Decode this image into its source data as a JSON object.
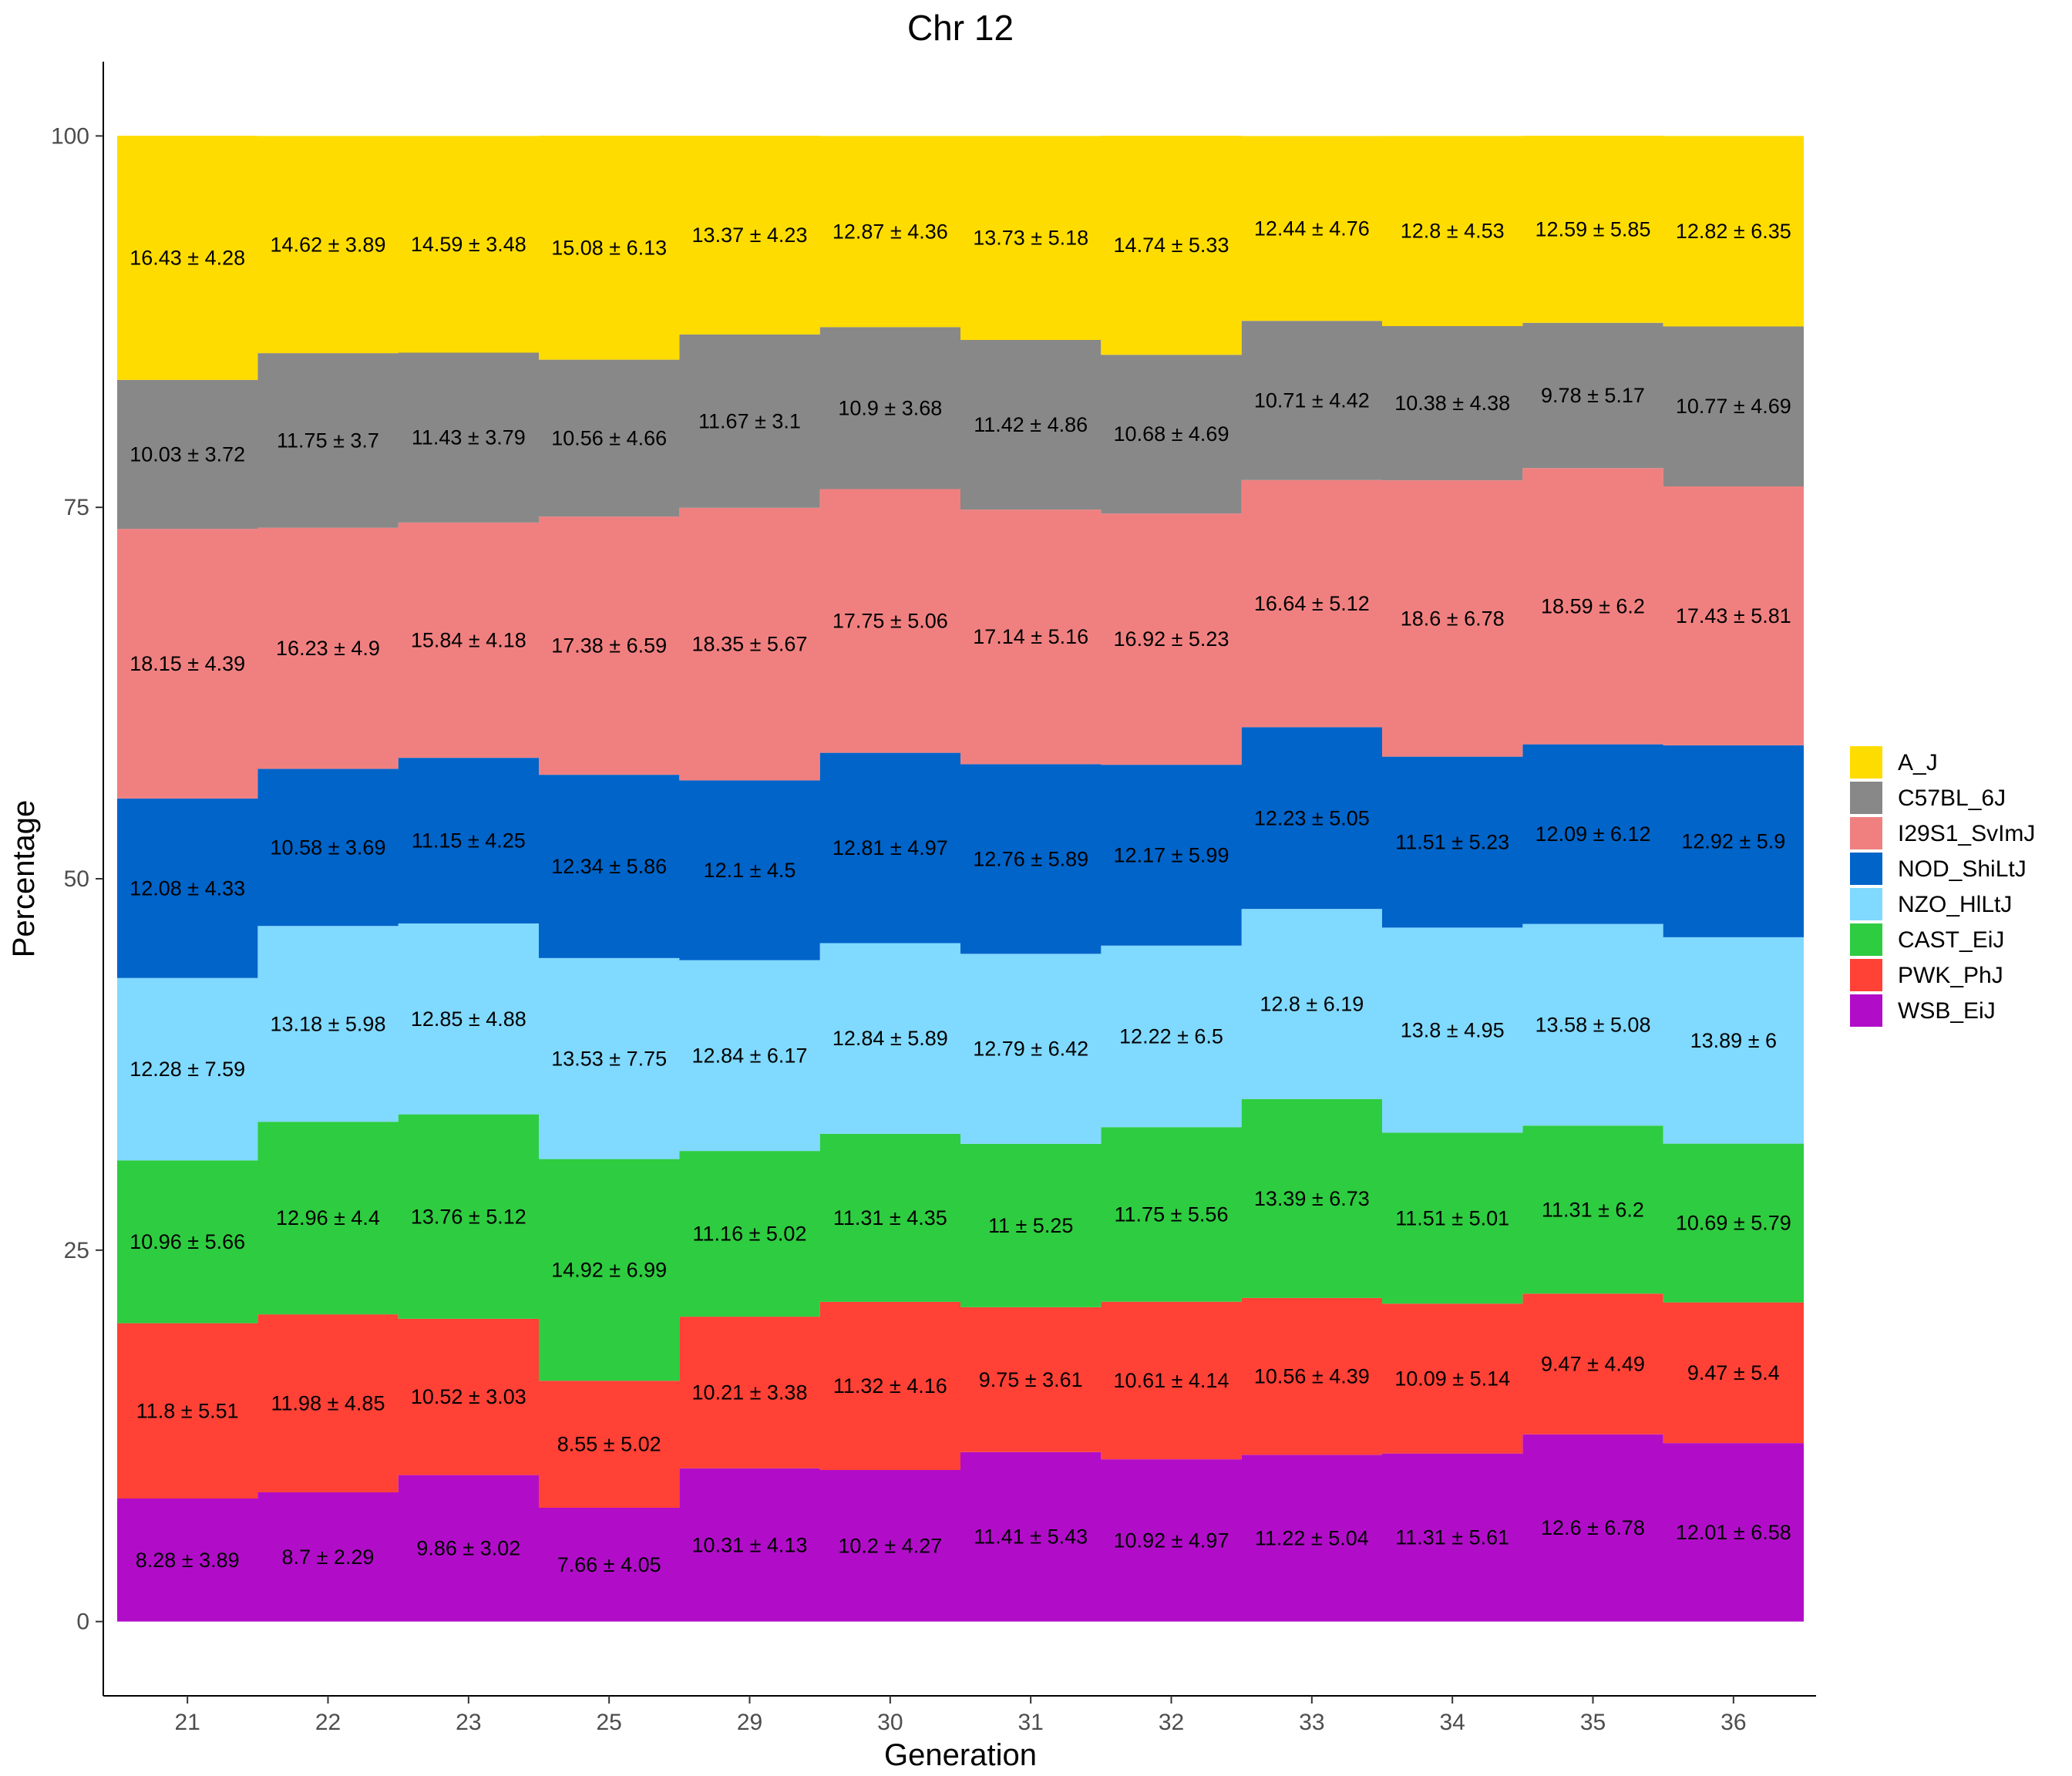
{
  "chart_data": {
    "type": "area",
    "stacked": true,
    "title": "Chr 12",
    "xlabel": "Generation",
    "ylabel": "Percentage",
    "ylim": [
      -5,
      105
    ],
    "yticks": [
      0,
      25,
      50,
      75,
      100
    ],
    "grid": false,
    "legend_position": "right",
    "categories": [
      "21",
      "22",
      "23",
      "25",
      "29",
      "30",
      "31",
      "32",
      "33",
      "34",
      "35",
      "36"
    ],
    "series": [
      {
        "name": "WSB_EiJ",
        "color": "#B10DC9",
        "values": [
          8.28,
          8.7,
          9.86,
          7.66,
          10.31,
          10.2,
          11.41,
          10.92,
          11.22,
          11.31,
          12.6,
          12.01
        ],
        "labels": [
          "8.28 ± 3.89",
          "8.7 ± 2.29",
          "9.86 ± 3.02",
          "7.66 ± 4.05",
          "10.31 ± 4.13",
          "10.2 ± 4.27",
          "11.41 ± 5.43",
          "10.92 ± 4.97",
          "11.22 ± 5.04",
          "11.31 ± 5.61",
          "12.6 ± 6.78",
          "12.01 ± 6.58"
        ]
      },
      {
        "name": "PWK_PhJ",
        "color": "#FF4136",
        "values": [
          11.8,
          11.98,
          10.52,
          8.55,
          10.21,
          11.32,
          9.75,
          10.61,
          10.56,
          10.09,
          9.47,
          9.47
        ],
        "labels": [
          "11.8 ± 5.51",
          "11.98 ± 4.85",
          "10.52 ± 3.03",
          "8.55 ± 5.02",
          "10.21 ± 3.38",
          "11.32 ± 4.16",
          "9.75 ± 3.61",
          "10.61 ± 4.14",
          "10.56 ± 4.39",
          "10.09 ± 5.14",
          "9.47 ± 4.49",
          "9.47 ± 5.4"
        ]
      },
      {
        "name": "CAST_EiJ",
        "color": "#2ECC40",
        "values": [
          10.96,
          12.96,
          13.76,
          14.92,
          11.16,
          11.31,
          11,
          11.75,
          13.39,
          11.51,
          11.31,
          10.69
        ],
        "labels": [
          "10.96 ± 5.66",
          "12.96 ± 4.4",
          "13.76 ± 5.12",
          "14.92 ± 6.99",
          "11.16 ± 5.02",
          "11.31 ± 4.35",
          "11 ± 5.25",
          "11.75 ± 5.56",
          "13.39 ± 6.73",
          "11.51 ± 5.01",
          "11.31 ± 6.2",
          "10.69 ± 5.79"
        ]
      },
      {
        "name": "NZO_HlLtJ",
        "color": "#80D9FF",
        "values": [
          12.28,
          13.18,
          12.85,
          13.53,
          12.84,
          12.84,
          12.79,
          12.22,
          12.8,
          13.8,
          13.58,
          13.89
        ],
        "labels": [
          "12.28 ± 7.59",
          "13.18 ± 5.98",
          "12.85 ± 4.88",
          "13.53 ± 7.75",
          "12.84 ± 6.17",
          "12.84 ± 5.89",
          "12.79 ± 6.42",
          "12.22 ± 6.5",
          "12.8 ± 6.19",
          "13.8 ± 4.95",
          "13.58 ± 5.08",
          "13.89 ± 6"
        ]
      },
      {
        "name": "NOD_ShiLtJ",
        "color": "#0064C9",
        "values": [
          12.08,
          10.58,
          11.15,
          12.34,
          12.1,
          12.81,
          12.76,
          12.17,
          12.23,
          11.51,
          12.09,
          12.92
        ],
        "labels": [
          "12.08 ± 4.33",
          "10.58 ± 3.69",
          "11.15 ± 4.25",
          "12.34 ± 5.86",
          "12.1 ± 4.5",
          "12.81 ± 4.97",
          "12.76 ± 5.89",
          "12.17 ± 5.99",
          "12.23 ± 5.05",
          "11.51 ± 5.23",
          "12.09 ± 6.12",
          "12.92 ± 5.9"
        ]
      },
      {
        "name": "I29S1_SvImJ",
        "color": "#F08080",
        "values": [
          18.15,
          16.23,
          15.84,
          17.38,
          18.35,
          17.75,
          17.14,
          16.92,
          16.64,
          18.6,
          18.59,
          17.43
        ],
        "labels": [
          "18.15 ± 4.39",
          "16.23 ± 4.9",
          "15.84 ± 4.18",
          "17.38 ± 6.59",
          "18.35 ± 5.67",
          "17.75 ± 5.06",
          "17.14 ± 5.16",
          "16.92 ± 5.23",
          "16.64 ± 5.12",
          "18.6 ± 6.78",
          "18.59 ± 6.2",
          "17.43 ± 5.81"
        ]
      },
      {
        "name": "C57BL_6J",
        "color": "#888888",
        "values": [
          10.03,
          11.75,
          11.43,
          10.56,
          11.67,
          10.9,
          11.42,
          10.68,
          10.71,
          10.38,
          9.78,
          10.77
        ],
        "labels": [
          "10.03 ± 3.72",
          "11.75 ± 3.7",
          "11.43 ± 3.79",
          "10.56 ± 4.66",
          "11.67 ± 3.1",
          "10.9 ± 3.68",
          "11.42 ± 4.86",
          "10.68 ± 4.69",
          "10.71 ± 4.42",
          "10.38 ± 4.38",
          "9.78 ± 5.17",
          "10.77 ± 4.69"
        ]
      },
      {
        "name": "A_J",
        "color": "#FFDC00",
        "values": [
          16.43,
          14.62,
          14.59,
          15.08,
          13.37,
          12.87,
          13.73,
          14.74,
          12.44,
          12.8,
          12.59,
          12.82
        ],
        "labels": [
          "16.43 ± 4.28",
          "14.62 ± 3.89",
          "14.59 ± 3.48",
          "15.08 ± 6.13",
          "13.37 ± 4.23",
          "12.87 ± 4.36",
          "13.73 ± 5.18",
          "14.74 ± 5.33",
          "12.44 ± 4.76",
          "12.8 ± 4.53",
          "12.59 ± 5.85",
          "12.82 ± 6.35"
        ]
      }
    ],
    "legend_order": [
      "A_J",
      "C57BL_6J",
      "I29S1_SvImJ",
      "NOD_ShiLtJ",
      "NZO_HlLtJ",
      "CAST_EiJ",
      "PWK_PhJ",
      "WSB_EiJ"
    ]
  }
}
